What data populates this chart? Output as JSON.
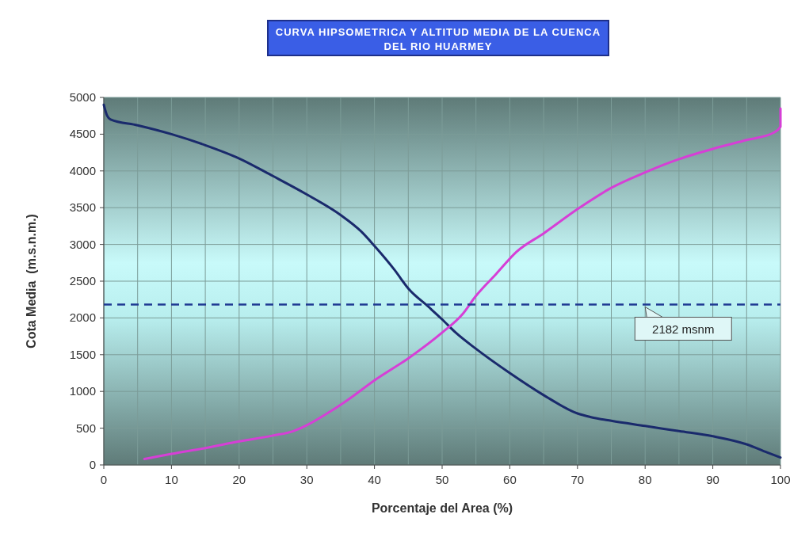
{
  "chart_data": {
    "type": "line",
    "title": "CURVA HIPSOMETRICA Y ALTITUD MEDIA DE LA CUENCA\nDEL RIO HUARMEY",
    "xlabel": "Porcentaje del Area (%)",
    "ylabel": "Cota Media  (m.s.n.m.)",
    "xlim": [
      0,
      100
    ],
    "xticks": [
      0,
      10,
      20,
      30,
      40,
      50,
      60,
      70,
      80,
      90,
      100
    ],
    "ylim": [
      0,
      5000
    ],
    "yticks": [
      0,
      500,
      1000,
      1500,
      2000,
      2500,
      3000,
      3500,
      4000,
      4500,
      5000
    ],
    "grid": true,
    "marker": "none",
    "line_style": "solid",
    "ref_lines": [
      {
        "axis": "y",
        "value": 2182,
        "label": "2182 msnm",
        "color": "#1f3a93",
        "line_style": "dashed"
      }
    ],
    "series": [
      {
        "color": "#1a2a6c",
        "x": [
          0,
          0.5,
          1,
          5,
          10,
          15,
          20,
          25,
          30,
          35,
          38,
          40,
          43,
          45,
          48,
          50,
          52,
          55,
          60,
          65,
          70,
          72,
          75,
          80,
          85,
          90,
          95,
          98,
          100
        ],
        "values": [
          4900,
          4750,
          4700,
          4620,
          4500,
          4350,
          4170,
          3930,
          3680,
          3400,
          3180,
          2980,
          2650,
          2400,
          2150,
          1980,
          1800,
          1580,
          1250,
          950,
          700,
          650,
          600,
          530,
          460,
          390,
          280,
          170,
          100
        ]
      },
      {
        "color": "#d63fd6",
        "x": [
          6,
          10,
          15,
          20,
          25,
          28,
          30,
          33,
          36,
          40,
          45,
          50,
          53,
          55,
          58,
          61,
          65,
          70,
          75,
          80,
          85,
          90,
          95,
          99,
          100,
          100
        ],
        "values": [
          80,
          150,
          230,
          320,
          400,
          460,
          540,
          700,
          880,
          1150,
          1450,
          1800,
          2050,
          2300,
          2600,
          2900,
          3150,
          3480,
          3770,
          3980,
          4160,
          4300,
          4420,
          4520,
          4600,
          4850
        ]
      }
    ]
  }
}
